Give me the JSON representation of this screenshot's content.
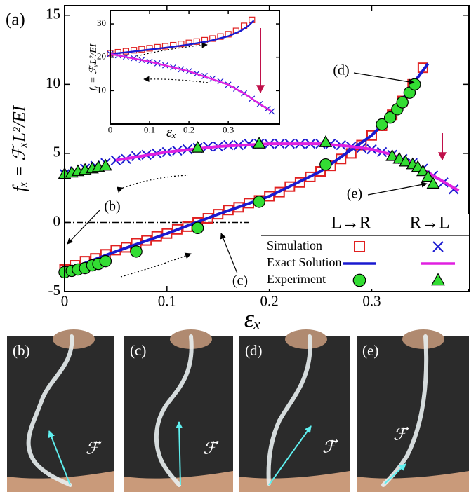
{
  "chart_data": [
    {
      "type": "scatter",
      "label": "(a)",
      "x_label": "εₓ",
      "y_label": "fₓ = ℱₓL²/EI",
      "xlim": [
        0,
        0.395
      ],
      "ylim": [
        -5,
        15.7
      ],
      "xticks": [
        0,
        0.1,
        0.2,
        0.3
      ],
      "yticks": [
        -5,
        0,
        5,
        10,
        15
      ],
      "legend": {
        "columns": [
          "L→R",
          "R→L"
        ],
        "rows": [
          "Simulation",
          "Exact Solution",
          "Experiment"
        ]
      },
      "reference_line": {
        "y": 0,
        "x": [
          0,
          0.18
        ]
      },
      "annotations": [
        "(b)",
        "(c)",
        "(d)",
        "(e)"
      ],
      "series": [
        {
          "marker": "square",
          "color": "#e02020",
          "legend": [
            0,
            0
          ],
          "x": [
            0,
            0.01,
            0.02,
            0.03,
            0.04,
            0.05,
            0.06,
            0.07,
            0.08,
            0.09,
            0.1,
            0.11,
            0.12,
            0.13,
            0.14,
            0.15,
            0.16,
            0.17,
            0.18,
            0.19,
            0.2,
            0.21,
            0.22,
            0.23,
            0.24,
            0.25,
            0.26,
            0.27,
            0.28,
            0.29,
            0.3,
            0.31,
            0.32,
            0.33,
            0.34,
            0.35
          ],
          "values": [
            -3.4,
            -3.1,
            -2.8,
            -2.6,
            -2.3,
            -2.0,
            -1.8,
            -1.5,
            -1.3,
            -1.0,
            -0.8,
            -0.5,
            -0.3,
            0,
            0.3,
            0.6,
            0.9,
            1.1,
            1.4,
            1.6,
            1.9,
            2.2,
            2.6,
            2.9,
            3.3,
            3.7,
            4.1,
            4.6,
            5.0,
            5.6,
            6.3,
            7.0,
            7.8,
            8.8,
            10.0,
            11.2
          ]
        },
        {
          "marker": "x",
          "color": "#1a1ad0",
          "legend": [
            0,
            1
          ],
          "x": [
            0,
            0.01,
            0.02,
            0.03,
            0.04,
            0.05,
            0.06,
            0.07,
            0.08,
            0.09,
            0.1,
            0.11,
            0.12,
            0.13,
            0.14,
            0.15,
            0.16,
            0.17,
            0.18,
            0.19,
            0.2,
            0.21,
            0.22,
            0.23,
            0.24,
            0.25,
            0.26,
            0.27,
            0.28,
            0.29,
            0.3,
            0.31,
            0.32,
            0.33,
            0.34,
            0.35,
            0.36,
            0.37,
            0.38
          ],
          "values": [
            3.5,
            3.7,
            3.9,
            4.1,
            4.3,
            4.5,
            4.6,
            4.8,
            4.9,
            5.0,
            5.1,
            5.2,
            5.3,
            5.4,
            5.5,
            5.5,
            5.6,
            5.6,
            5.7,
            5.7,
            5.7,
            5.7,
            5.7,
            5.7,
            5.7,
            5.7,
            5.7,
            5.6,
            5.5,
            5.4,
            5.3,
            5.1,
            4.9,
            4.6,
            4.3,
            3.9,
            3.4,
            2.9,
            2.4
          ]
        },
        {
          "marker": "line",
          "color": "#1a1ad0",
          "legend": [
            1,
            0
          ],
          "x": [
            0,
            0.05,
            0.1,
            0.15,
            0.2,
            0.25,
            0.3,
            0.32,
            0.34,
            0.355
          ],
          "values": [
            -3.5,
            -2.1,
            -0.8,
            0.6,
            1.9,
            3.7,
            6.3,
            7.8,
            10,
            11.5
          ]
        },
        {
          "marker": "line",
          "color": "#e020e0",
          "legend": [
            1,
            1
          ],
          "x": [
            0.05,
            0.1,
            0.15,
            0.2,
            0.25,
            0.28,
            0.3,
            0.32,
            0.34,
            0.36,
            0.385
          ],
          "values": [
            4.5,
            5.1,
            5.5,
            5.7,
            5.7,
            5.5,
            5.3,
            4.9,
            4.3,
            3.4,
            2.3
          ]
        },
        {
          "marker": "circle",
          "color": "#33dd33",
          "legend": [
            2,
            0
          ],
          "x": [
            0,
            0.007,
            0.013,
            0.02,
            0.027,
            0.033,
            0.04,
            0.07,
            0.13,
            0.19,
            0.255,
            0.31,
            0.318,
            0.325,
            0.33,
            0.337,
            0.342
          ],
          "values": [
            -3.6,
            -3.5,
            -3.4,
            -3.3,
            -3.1,
            -3.0,
            -2.8,
            -2.1,
            -0.4,
            1.5,
            4.2,
            7.1,
            7.6,
            8.2,
            8.7,
            9.4,
            10.0
          ]
        },
        {
          "marker": "triangle",
          "color": "#33dd33",
          "legend": [
            2,
            1
          ],
          "x": [
            0,
            0.007,
            0.013,
            0.02,
            0.027,
            0.033,
            0.04,
            0.13,
            0.19,
            0.255,
            0.32,
            0.327,
            0.333,
            0.34,
            0.345,
            0.35,
            0.355,
            0.36
          ],
          "values": [
            3.5,
            3.6,
            3.7,
            3.8,
            3.9,
            4.0,
            4.1,
            5.4,
            5.7,
            5.8,
            4.8,
            4.6,
            4.4,
            4.2,
            4.0,
            3.7,
            3.3,
            2.8
          ]
        }
      ]
    },
    {
      "type": "scatter",
      "x_label": "εₓ",
      "y_label": "fᵧ = ℱᵧL²/EI",
      "xlim": [
        0,
        0.43
      ],
      "ylim": [
        0,
        34
      ],
      "xticks": [
        0,
        0.1,
        0.2,
        0.3
      ],
      "yticks": [
        10,
        20,
        30
      ],
      "series": [
        {
          "marker": "square",
          "color": "#e02020",
          "x": [
            0,
            0.02,
            0.04,
            0.06,
            0.08,
            0.1,
            0.12,
            0.14,
            0.16,
            0.18,
            0.2,
            0.22,
            0.24,
            0.26,
            0.28,
            0.3,
            0.32,
            0.34,
            0.36
          ],
          "values": [
            21.2,
            21.5,
            21.8,
            22.1,
            22.4,
            22.7,
            23.0,
            23.3,
            23.6,
            24.0,
            24.3,
            24.7,
            25.1,
            25.6,
            26.2,
            26.9,
            27.9,
            29.4,
            31.2
          ]
        },
        {
          "marker": "x",
          "color": "#1a1ad0",
          "x": [
            0,
            0.02,
            0.04,
            0.06,
            0.08,
            0.1,
            0.12,
            0.14,
            0.16,
            0.18,
            0.2,
            0.22,
            0.24,
            0.26,
            0.28,
            0.3,
            0.32,
            0.34,
            0.36,
            0.38,
            0.4,
            0.41
          ],
          "values": [
            21,
            20.6,
            20.2,
            19.7,
            19.2,
            18.7,
            18.2,
            17.6,
            17.0,
            16.4,
            15.8,
            15.1,
            14.4,
            13.6,
            12.8,
            11.8,
            10.6,
            9.2,
            7.6,
            6.0,
            4.6,
            3.8
          ]
        },
        {
          "marker": "line",
          "color": "#1a1ad0",
          "x": [
            0,
            0.05,
            0.1,
            0.15,
            0.2,
            0.25,
            0.3,
            0.33,
            0.35,
            0.365
          ],
          "values": [
            21,
            21.6,
            22.3,
            23,
            23.8,
            24.8,
            26.3,
            27.8,
            29.3,
            31
          ]
        },
        {
          "marker": "line",
          "color": "#e020e0",
          "x": [
            0,
            0.1,
            0.2,
            0.3,
            0.34,
            0.38,
            0.41
          ],
          "values": [
            21,
            18.7,
            15.8,
            11.8,
            9.2,
            6.0,
            3.8
          ]
        }
      ]
    }
  ],
  "photos": [
    {
      "label": "(b)",
      "force": "ℱ⃗"
    },
    {
      "label": "(c)",
      "force": "ℱ⃗"
    },
    {
      "label": "(d)",
      "force": "ℱ⃗"
    },
    {
      "label": "(e)",
      "force": "ℱ⃗"
    }
  ]
}
